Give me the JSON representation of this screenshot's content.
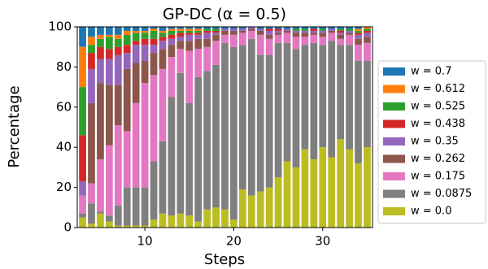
{
  "chart_data": {
    "type": "stacked_bar",
    "title": "GP-DC (α = 0.5)",
    "x_label": "Steps",
    "y_label": "Percentage",
    "x": [
      3,
      4,
      5,
      6,
      7,
      8,
      9,
      10,
      11,
      12,
      13,
      14,
      15,
      16,
      17,
      18,
      19,
      20,
      21,
      22,
      23,
      24,
      25,
      26,
      27,
      28,
      29,
      30,
      31,
      32,
      33,
      34,
      35
    ],
    "xlim": [
      2.4,
      35.6
    ],
    "xticks": [
      10,
      20,
      30
    ],
    "ylim": [
      0,
      100
    ],
    "yticks": [
      0,
      20,
      40,
      60,
      80,
      100
    ],
    "legend": "right",
    "series": [
      {
        "name": "w = 0.0",
        "color": "#bcbd22",
        "values": [
          5,
          2,
          7,
          3,
          1,
          1,
          1,
          1,
          4,
          7,
          6,
          7,
          6,
          3,
          9,
          10,
          9,
          4,
          19,
          16,
          18,
          20,
          25,
          33,
          30,
          39,
          34,
          40,
          35,
          44,
          39,
          32,
          40
        ]
      },
      {
        "name": "w = 0.0875",
        "color": "#7f7f7f",
        "values": [
          2,
          10,
          1,
          3,
          10,
          19,
          19,
          19,
          29,
          36,
          59,
          70,
          56,
          72,
          69,
          71,
          83,
          86,
          72,
          78,
          68,
          66,
          67,
          59,
          59,
          52,
          58,
          51,
          58,
          47,
          52,
          51,
          43
        ]
      },
      {
        "name": "w = 0.175",
        "color": "#e377c2",
        "values": [
          9,
          10,
          26,
          35,
          40,
          28,
          42,
          52,
          43,
          36,
          20,
          12,
          26,
          14,
          12,
          12,
          4,
          6,
          6,
          4,
          10,
          8,
          4,
          5,
          6,
          4,
          4,
          4,
          4,
          3,
          5,
          8,
          9
        ]
      },
      {
        "name": "w = 0.262",
        "color": "#8c564b",
        "values": [
          0,
          40,
          38,
          30,
          20,
          31,
          20,
          11,
          11,
          10,
          6,
          4,
          5,
          5,
          4,
          3,
          2,
          2,
          1,
          1,
          2,
          2,
          1,
          1,
          2,
          2,
          1,
          2,
          1,
          2,
          1,
          3,
          3
        ]
      },
      {
        "name": "w = 0.35",
        "color": "#9467bd",
        "values": [
          7,
          17,
          12,
          13,
          15,
          8,
          9,
          8,
          4,
          4,
          3,
          2,
          3,
          2,
          3,
          1,
          1,
          1,
          1,
          1,
          1,
          2,
          1,
          1,
          1,
          1,
          1,
          1,
          1,
          1,
          1,
          2,
          2
        ]
      },
      {
        "name": "w = 0.438",
        "color": "#d62728",
        "values": [
          23,
          8,
          6,
          5,
          4,
          4,
          2,
          3,
          3,
          2,
          2,
          2,
          1,
          1,
          1,
          1,
          0,
          0,
          0,
          0,
          0,
          1,
          1,
          0,
          0,
          0,
          1,
          0,
          0,
          1,
          0,
          1,
          1
        ]
      },
      {
        "name": "w = 0.525",
        "color": "#2ca02c",
        "values": [
          24,
          4,
          4,
          6,
          4,
          5,
          4,
          3,
          4,
          2,
          2,
          1,
          1,
          1,
          1,
          1,
          0,
          0,
          0,
          0,
          0,
          0,
          0,
          0,
          1,
          1,
          0,
          1,
          0,
          1,
          1,
          1,
          1
        ]
      },
      {
        "name": "w = 0.612",
        "color": "#ff7f0e",
        "values": [
          20,
          4,
          2,
          1,
          2,
          2,
          1,
          1,
          1,
          1,
          1,
          1,
          1,
          1,
          0,
          0,
          0,
          0,
          0,
          0,
          0,
          0,
          0,
          0,
          0,
          0,
          0,
          0,
          0,
          0,
          0,
          1,
          1
        ]
      },
      {
        "name": "w = 0.7",
        "color": "#1f77b4",
        "values": [
          10,
          5,
          4,
          4,
          4,
          2,
          2,
          2,
          1,
          2,
          1,
          1,
          1,
          1,
          1,
          1,
          1,
          1,
          1,
          0,
          1,
          1,
          1,
          1,
          1,
          1,
          1,
          1,
          1,
          1,
          1,
          1,
          0
        ]
      }
    ]
  }
}
